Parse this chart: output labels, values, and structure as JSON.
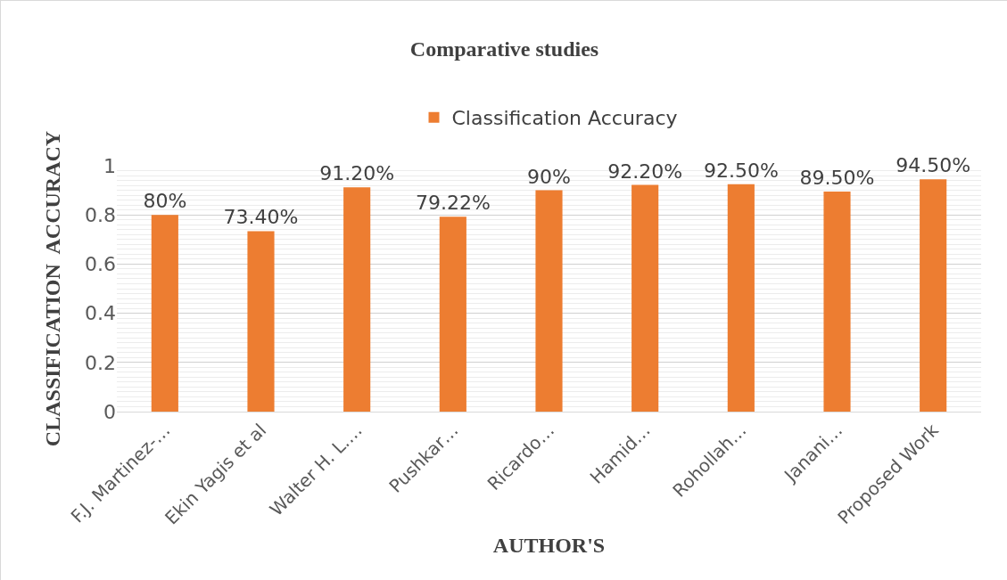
{
  "chart_data": {
    "type": "bar",
    "title": "Comparative studies",
    "xlabel": "AUTHOR'S",
    "ylabel": "CLASSIFICATION  ACCURACY",
    "categories": [
      "F.J. Martinez-…",
      "Ekin Yagis et al",
      "Walter H. L.…",
      "Pushkar…",
      "Ricardo…",
      "Hamid…",
      "Rohollah…",
      "Janani…",
      "Proposed Work"
    ],
    "series": [
      {
        "name": "Classification Accuracy",
        "color": "#ed7d31",
        "values": [
          0.8,
          0.734,
          0.912,
          0.7922,
          0.9,
          0.922,
          0.925,
          0.895,
          0.945
        ],
        "value_labels": [
          "80%",
          "73.40%",
          "91.20%",
          "79.22%",
          "90%",
          "92.20%",
          "92.50%",
          "89.50%",
          "94.50%"
        ]
      }
    ],
    "ylim": [
      0,
      1
    ],
    "yticks": [
      0,
      0.2,
      0.4,
      0.6,
      0.8,
      1
    ],
    "grid": "y",
    "legend": "top"
  }
}
